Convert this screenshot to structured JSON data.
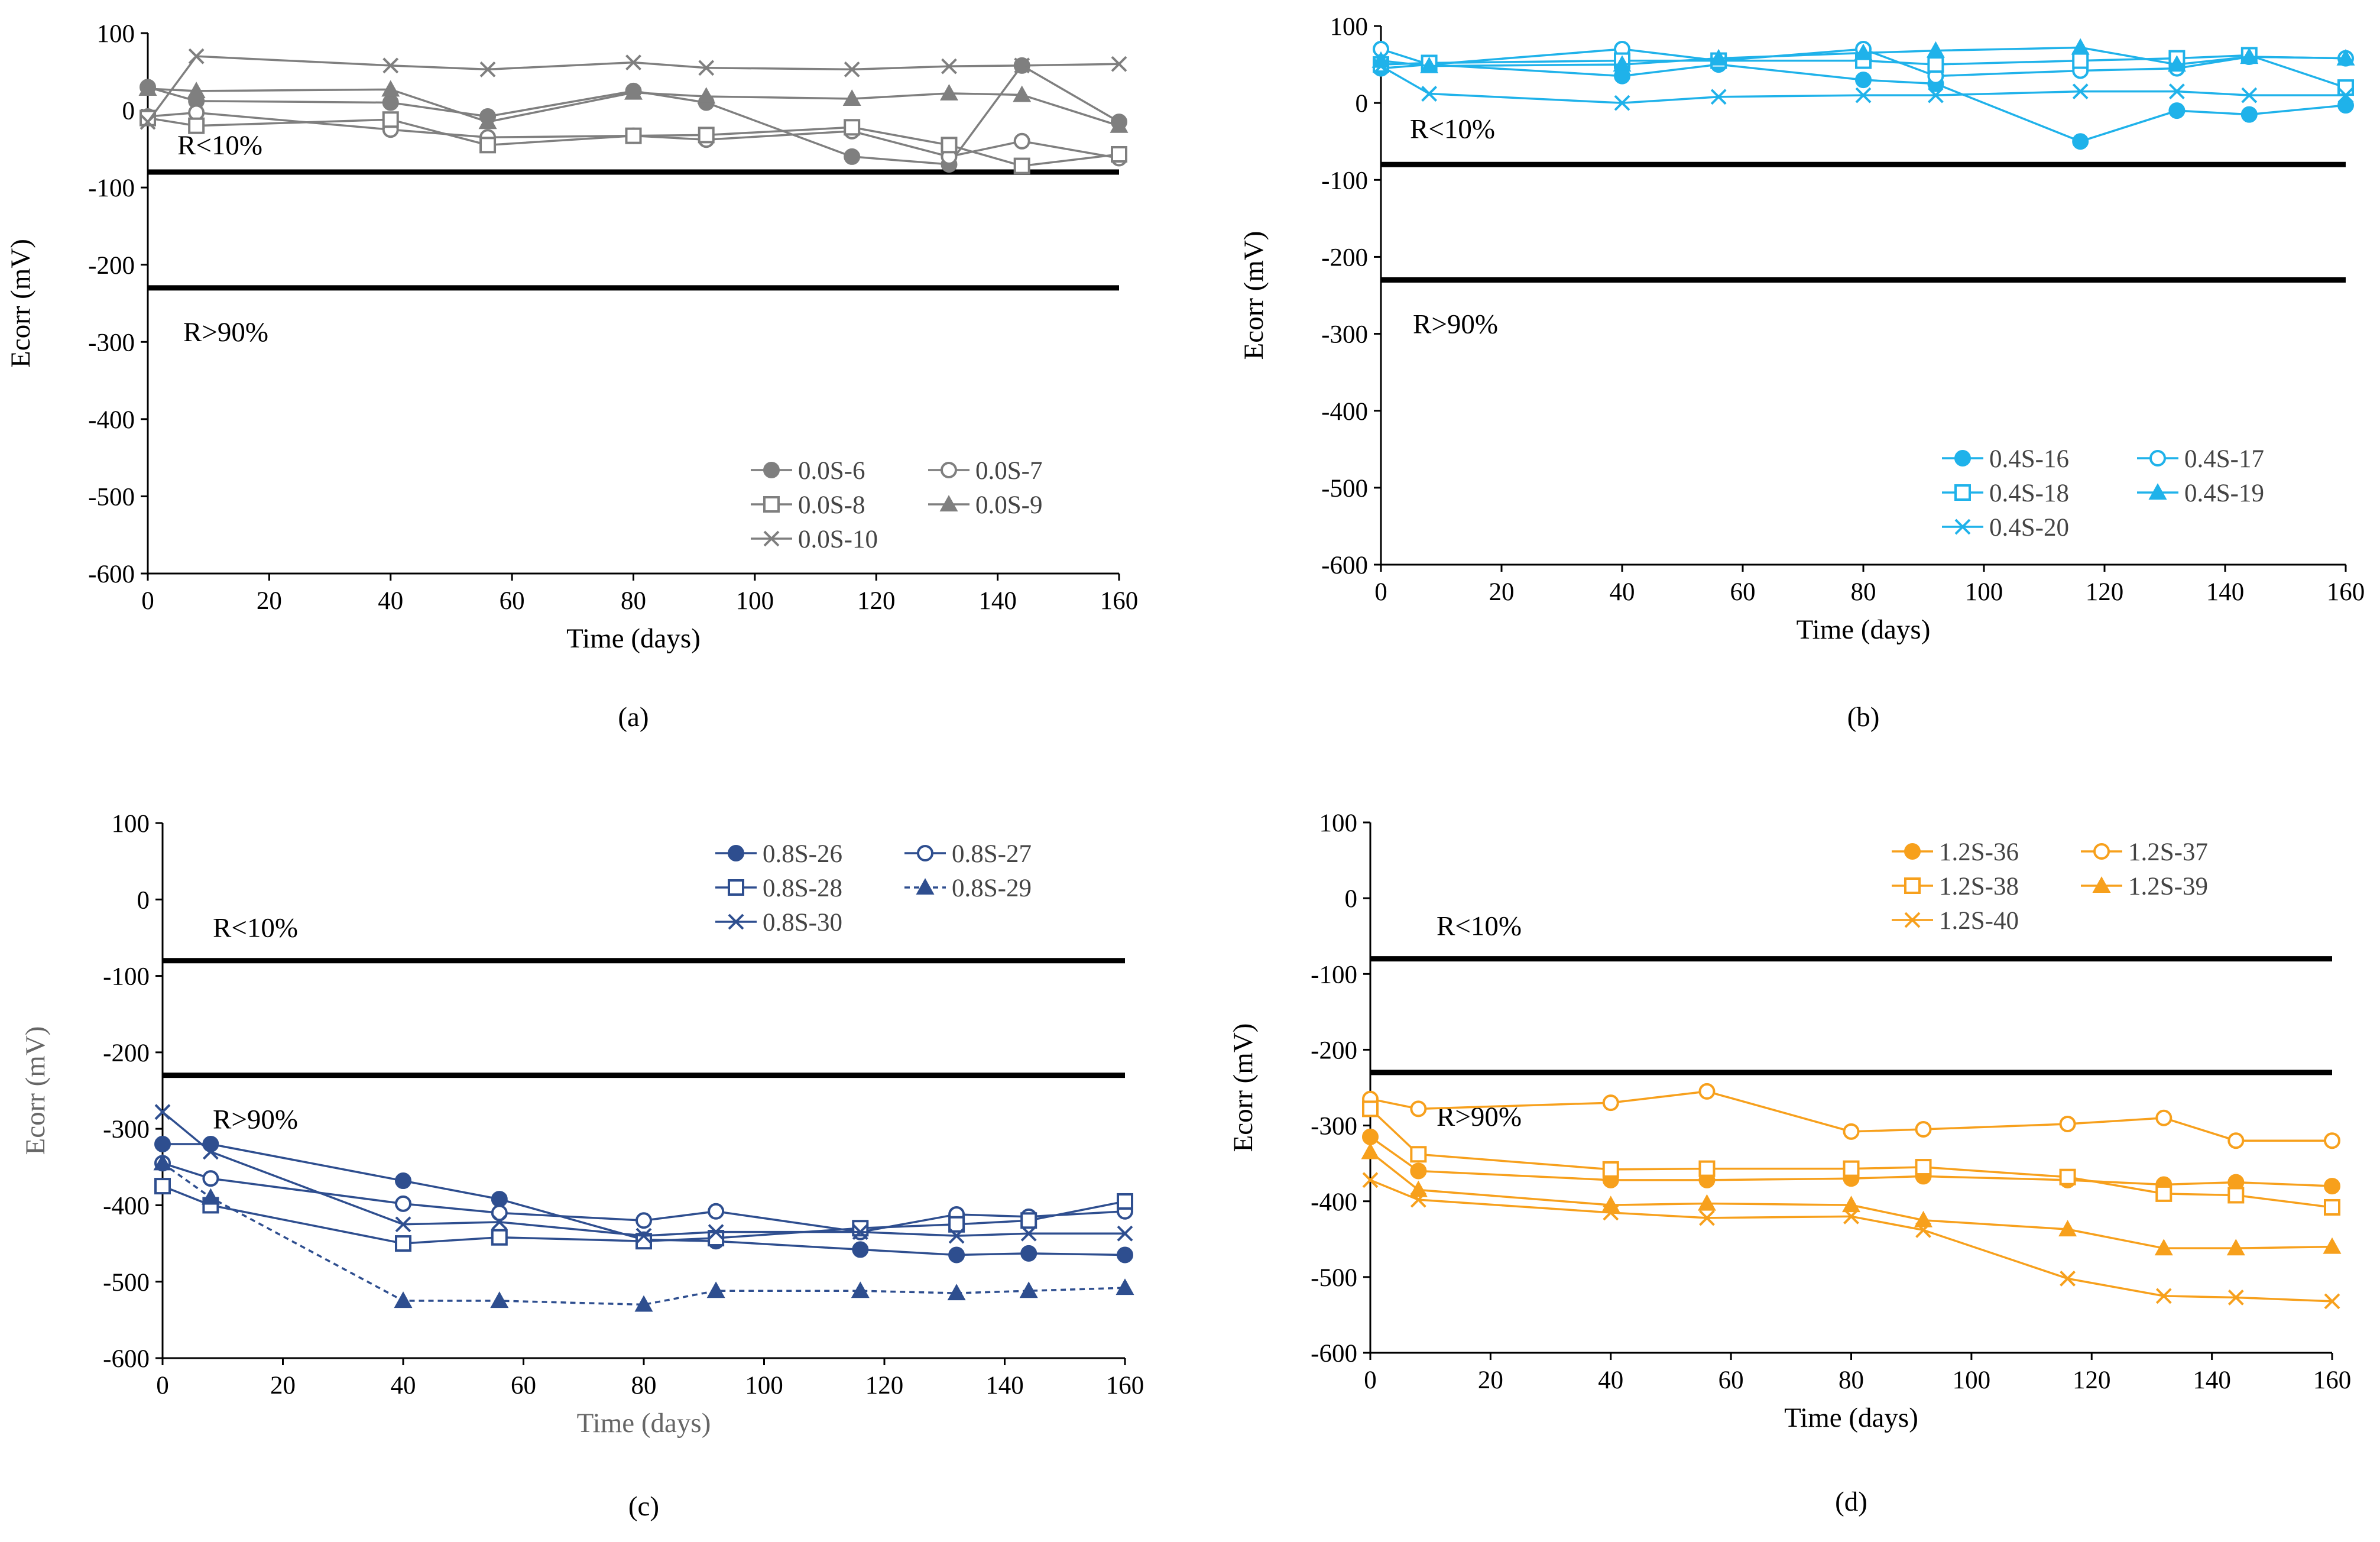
{
  "figure": {
    "panel_labels": [
      "(a)",
      "(b)",
      "(c)",
      "(d)"
    ]
  },
  "chart_data": [
    {
      "id": "a",
      "type": "line",
      "panel_label": "(a)",
      "xlabel": "Time (days)",
      "ylabel": "Ecorr (mV)",
      "xlim": [
        0,
        160
      ],
      "ylim": [
        -600,
        100
      ],
      "xticks": [
        0,
        20,
        40,
        60,
        80,
        100,
        120,
        140,
        160
      ],
      "yticks": [
        100,
        0,
        -100,
        -200,
        -300,
        -400,
        -500,
        -600
      ],
      "grid": false,
      "legend_position": "bottom-right",
      "legend_columns": 2,
      "color": "#7f7f7f",
      "thresholds": [
        {
          "value": -80,
          "label": "R<10%"
        },
        {
          "value": -230,
          "label": "R>90%"
        }
      ],
      "series": [
        {
          "name": "0.0S-6",
          "marker": "circle-filled",
          "dash": false,
          "x": [
            0,
            8,
            40,
            56,
            80,
            92,
            116,
            132,
            144,
            160
          ],
          "y": [
            30,
            12,
            10,
            -8,
            25,
            10,
            -60,
            -70,
            58,
            -15
          ]
        },
        {
          "name": "0.0S-7",
          "marker": "circle-open",
          "dash": false,
          "x": [
            0,
            8,
            40,
            56,
            80,
            92,
            116,
            132,
            144,
            160
          ],
          "y": [
            -8,
            -3,
            -25,
            -35,
            -33,
            -38,
            -27,
            -60,
            -40,
            -62
          ]
        },
        {
          "name": "0.0S-8",
          "marker": "square-open",
          "dash": false,
          "x": [
            0,
            8,
            40,
            56,
            80,
            92,
            116,
            132,
            144,
            160
          ],
          "y": [
            -10,
            -20,
            -12,
            -45,
            -33,
            -32,
            -22,
            -45,
            -72,
            -57
          ]
        },
        {
          "name": "0.0S-9",
          "marker": "triangle-filled",
          "dash": false,
          "x": [
            0,
            8,
            40,
            56,
            80,
            92,
            116,
            132,
            144,
            160
          ],
          "y": [
            28,
            25,
            27,
            -15,
            23,
            18,
            15,
            22,
            20,
            -20
          ]
        },
        {
          "name": "0.0S-10",
          "marker": "x",
          "dash": false,
          "x": [
            0,
            8,
            40,
            56,
            80,
            92,
            116,
            132,
            144,
            160
          ],
          "y": [
            -15,
            70,
            58,
            53,
            62,
            55,
            53,
            57,
            58,
            60
          ]
        }
      ]
    },
    {
      "id": "b",
      "type": "line",
      "panel_label": "(b)",
      "xlabel": "Time (days)",
      "ylabel": "Ecorr (mV)",
      "xlim": [
        0,
        160
      ],
      "ylim": [
        -600,
        100
      ],
      "xticks": [
        0,
        20,
        40,
        60,
        80,
        100,
        120,
        140,
        160
      ],
      "yticks": [
        100,
        0,
        -100,
        -200,
        -300,
        -400,
        -500,
        -600
      ],
      "grid": false,
      "legend_position": "bottom-right",
      "legend_columns": 2,
      "color": "#1fb2ea",
      "thresholds": [
        {
          "value": -80,
          "label": "R<10%"
        },
        {
          "value": -230,
          "label": "R>90%"
        }
      ],
      "series": [
        {
          "name": "0.4S-16",
          "marker": "circle-filled",
          "dash": false,
          "x": [
            0,
            8,
            40,
            56,
            80,
            92,
            116,
            132,
            144,
            160
          ],
          "y": [
            45,
            50,
            35,
            50,
            30,
            25,
            -50,
            -10,
            -15,
            -3
          ]
        },
        {
          "name": "0.4S-17",
          "marker": "circle-open",
          "dash": false,
          "x": [
            0,
            8,
            40,
            56,
            80,
            92,
            116,
            132,
            144,
            160
          ],
          "y": [
            70,
            50,
            70,
            55,
            70,
            35,
            42,
            45,
            60,
            58
          ]
        },
        {
          "name": "0.4S-18",
          "marker": "square-open",
          "dash": false,
          "x": [
            0,
            8,
            40,
            56,
            80,
            92,
            116,
            132,
            144,
            160
          ],
          "y": [
            50,
            52,
            55,
            55,
            55,
            50,
            55,
            58,
            62,
            20
          ]
        },
        {
          "name": "0.4S-19",
          "marker": "triangle-filled",
          "dash": false,
          "x": [
            0,
            8,
            40,
            56,
            80,
            92,
            116,
            132,
            144,
            160
          ],
          "y": [
            55,
            48,
            50,
            58,
            65,
            68,
            72,
            50,
            60,
            58
          ]
        },
        {
          "name": "0.4S-20",
          "marker": "x",
          "dash": false,
          "x": [
            0,
            8,
            40,
            56,
            80,
            92,
            116,
            132,
            144,
            160
          ],
          "y": [
            48,
            12,
            0,
            8,
            10,
            10,
            15,
            15,
            10,
            10
          ]
        }
      ]
    },
    {
      "id": "c",
      "type": "line",
      "panel_label": "(c)",
      "xlabel": "Time (days)",
      "ylabel": "Ecorr (mV)",
      "xlim": [
        0,
        160
      ],
      "ylim": [
        -600,
        100
      ],
      "xticks": [
        0,
        20,
        40,
        60,
        80,
        100,
        120,
        140,
        160
      ],
      "yticks": [
        100,
        0,
        -100,
        -200,
        -300,
        -400,
        -500,
        -600
      ],
      "grid": false,
      "legend_position": "top-right",
      "legend_columns": 2,
      "color": "#2e4e8f",
      "thresholds": [
        {
          "value": -80,
          "label": "R<10%"
        },
        {
          "value": -230,
          "label": "R>90%"
        }
      ],
      "series": [
        {
          "name": "0.8S-26",
          "marker": "circle-filled",
          "dash": false,
          "x": [
            0,
            8,
            40,
            56,
            80,
            92,
            116,
            132,
            144,
            160
          ],
          "y": [
            -320,
            -320,
            -368,
            -392,
            -445,
            -447,
            -458,
            -465,
            -463,
            -465
          ]
        },
        {
          "name": "0.8S-27",
          "marker": "circle-open",
          "dash": false,
          "x": [
            0,
            8,
            40,
            56,
            80,
            92,
            116,
            132,
            144,
            160
          ],
          "y": [
            -345,
            -365,
            -398,
            -410,
            -420,
            -408,
            -435,
            -412,
            -415,
            -408
          ]
        },
        {
          "name": "0.8S-28",
          "marker": "square-open",
          "dash": false,
          "x": [
            0,
            8,
            40,
            56,
            80,
            92,
            116,
            132,
            144,
            160
          ],
          "y": [
            -375,
            -400,
            -450,
            -442,
            -447,
            -443,
            -430,
            -425,
            -420,
            -395
          ]
        },
        {
          "name": "0.8S-29",
          "marker": "triangle-filled",
          "dash": true,
          "x": [
            0,
            8,
            40,
            56,
            80,
            92,
            116,
            132,
            144,
            160
          ],
          "y": [
            -345,
            -390,
            -525,
            -525,
            -530,
            -512,
            -512,
            -515,
            -512,
            -508
          ]
        },
        {
          "name": "0.8S-30",
          "marker": "x",
          "dash": false,
          "x": [
            0,
            8,
            40,
            56,
            80,
            92,
            116,
            132,
            144,
            160
          ],
          "y": [
            -278,
            -330,
            -425,
            -422,
            -440,
            -435,
            -435,
            -440,
            -437,
            -437
          ]
        }
      ]
    },
    {
      "id": "d",
      "type": "line",
      "panel_label": "(d)",
      "xlabel": "Time (days)",
      "ylabel": "Ecorr (mV)",
      "xlim": [
        0,
        160
      ],
      "ylim": [
        -600,
        100
      ],
      "xticks": [
        0,
        20,
        40,
        60,
        80,
        100,
        120,
        140,
        160
      ],
      "yticks": [
        100,
        0,
        -100,
        -200,
        -300,
        -400,
        -500,
        -600
      ],
      "grid": false,
      "legend_position": "top-right",
      "legend_columns": 2,
      "color": "#f7a01c",
      "thresholds": [
        {
          "value": -80,
          "label": "R<10%"
        },
        {
          "value": -230,
          "label": "R>90%"
        }
      ],
      "series": [
        {
          "name": "1.2S-36",
          "marker": "circle-filled",
          "dash": false,
          "x": [
            0,
            8,
            40,
            56,
            80,
            92,
            116,
            132,
            144,
            160
          ],
          "y": [
            -315,
            -360,
            -372,
            -372,
            -370,
            -367,
            -372,
            -378,
            -375,
            -380
          ]
        },
        {
          "name": "1.2S-37",
          "marker": "circle-open",
          "dash": false,
          "x": [
            0,
            8,
            40,
            56,
            80,
            92,
            116,
            132,
            144,
            160
          ],
          "y": [
            -265,
            -278,
            -270,
            -255,
            -308,
            -305,
            -298,
            -290,
            -320,
            -320
          ]
        },
        {
          "name": "1.2S-38",
          "marker": "square-open",
          "dash": false,
          "x": [
            0,
            8,
            40,
            56,
            80,
            92,
            116,
            132,
            144,
            160
          ],
          "y": [
            -278,
            -338,
            -358,
            -357,
            -357,
            -355,
            -368,
            -390,
            -392,
            -408
          ]
        },
        {
          "name": "1.2S-39",
          "marker": "triangle-filled",
          "dash": false,
          "x": [
            0,
            8,
            40,
            56,
            80,
            92,
            116,
            132,
            144,
            160
          ],
          "y": [
            -335,
            -385,
            -405,
            -403,
            -405,
            -425,
            -437,
            -462,
            -462,
            -460
          ]
        },
        {
          "name": "1.2S-40",
          "marker": "x",
          "dash": false,
          "x": [
            0,
            8,
            40,
            56,
            80,
            92,
            116,
            132,
            144,
            160
          ],
          "y": [
            -372,
            -398,
            -415,
            -422,
            -420,
            -438,
            -502,
            -525,
            -527,
            -532
          ]
        }
      ]
    }
  ]
}
